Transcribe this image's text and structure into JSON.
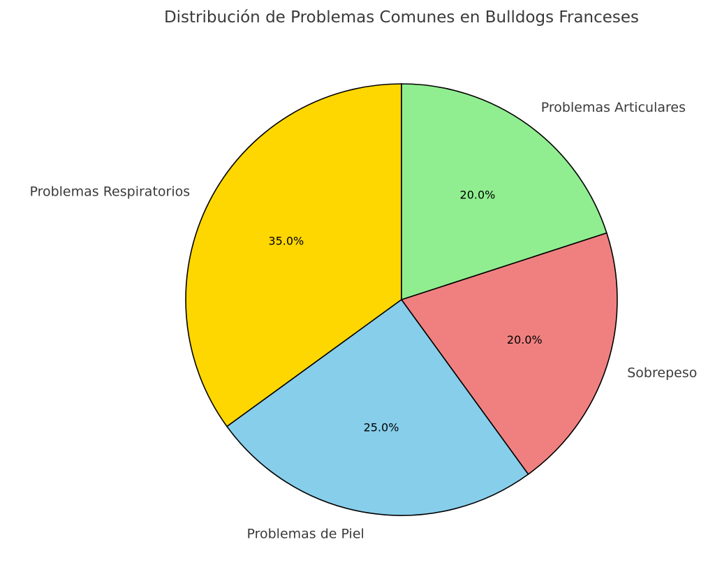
{
  "chart_data": {
    "type": "pie",
    "title": "Distribución de Problemas Comunes en Bulldogs Franceses",
    "start_angle_deg": 90,
    "direction": "counterclockwise",
    "categories": [
      "Problemas Respiratorios",
      "Problemas de Piel",
      "Sobrepeso",
      "Problemas Articulares"
    ],
    "values": [
      35.0,
      25.0,
      20.0,
      20.0
    ],
    "labels": [
      "35.0%",
      "25.0%",
      "20.0%",
      "20.0%"
    ],
    "colors": [
      "#FFD700",
      "#87CEEB",
      "#F08080",
      "#90EE90"
    ],
    "edge_color": "#000000",
    "legend": "none"
  }
}
